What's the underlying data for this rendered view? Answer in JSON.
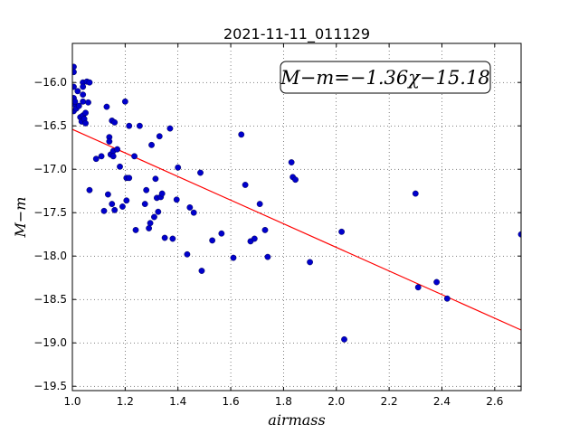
{
  "chart_data": {
    "type": "scatter",
    "title": "2021-11-11_011129",
    "xlabel": "airmass",
    "ylabel": "M−m",
    "xlim": [
      1.0,
      2.7
    ],
    "ylim": [
      -15.55,
      -19.55
    ],
    "y_inverted": true,
    "grid": true,
    "x_ticks": [
      1.0,
      1.2,
      1.4,
      1.6,
      1.8,
      2.0,
      2.2,
      2.4,
      2.6
    ],
    "x_tick_labels": [
      "1.0",
      "1.2",
      "1.4",
      "1.6",
      "1.8",
      "2.0",
      "2.2",
      "2.4",
      "2.6"
    ],
    "y_ticks": [
      -16.0,
      -16.5,
      -17.0,
      -17.5,
      -18.0,
      -18.5,
      -19.0,
      -19.5
    ],
    "y_tick_labels": [
      "−16.0",
      "−16.5",
      "−17.0",
      "−17.5",
      "−18.0",
      "−18.5",
      "−19.0",
      "−19.5"
    ],
    "annotation": "M−m=−1.36χ−15.18",
    "annotation_position": "top-right",
    "fit_line": {
      "slope": -1.36,
      "intercept": -15.18,
      "color": "#ff0000"
    },
    "point_color": "#0000cc",
    "points": [
      [
        1.005,
        -15.82
      ],
      [
        1.005,
        -15.88
      ],
      [
        1.005,
        -16.05
      ],
      [
        1.005,
        -16.18
      ],
      [
        1.005,
        -16.25
      ],
      [
        1.005,
        -16.33
      ],
      [
        1.01,
        -16.22
      ],
      [
        1.015,
        -16.3
      ],
      [
        1.02,
        -16.1
      ],
      [
        1.025,
        -16.27
      ],
      [
        1.03,
        -16.4
      ],
      [
        1.035,
        -16.45
      ],
      [
        1.04,
        -16.0
      ],
      [
        1.04,
        -16.05
      ],
      [
        1.04,
        -16.14
      ],
      [
        1.04,
        -16.22
      ],
      [
        1.04,
        -16.38
      ],
      [
        1.045,
        -16.42
      ],
      [
        1.05,
        -16.35
      ],
      [
        1.05,
        -16.47
      ],
      [
        1.055,
        -15.99
      ],
      [
        1.06,
        -16.23
      ],
      [
        1.065,
        -16.0
      ],
      [
        1.065,
        -17.24
      ],
      [
        1.09,
        -16.88
      ],
      [
        1.11,
        -16.85
      ],
      [
        1.12,
        -17.48
      ],
      [
        1.13,
        -16.28
      ],
      [
        1.135,
        -17.29
      ],
      [
        1.14,
        -16.63
      ],
      [
        1.14,
        -16.68
      ],
      [
        1.145,
        -16.83
      ],
      [
        1.15,
        -16.44
      ],
      [
        1.15,
        -17.4
      ],
      [
        1.155,
        -16.79
      ],
      [
        1.155,
        -16.85
      ],
      [
        1.16,
        -16.46
      ],
      [
        1.16,
        -17.47
      ],
      [
        1.17,
        -16.77
      ],
      [
        1.18,
        -16.97
      ],
      [
        1.19,
        -17.43
      ],
      [
        1.2,
        -16.22
      ],
      [
        1.205,
        -17.1
      ],
      [
        1.205,
        -17.36
      ],
      [
        1.215,
        -16.5
      ],
      [
        1.215,
        -17.1
      ],
      [
        1.235,
        -16.85
      ],
      [
        1.24,
        -17.7
      ],
      [
        1.255,
        -16.5
      ],
      [
        1.275,
        -17.4
      ],
      [
        1.28,
        -17.24
      ],
      [
        1.29,
        -17.68
      ],
      [
        1.295,
        -17.62
      ],
      [
        1.3,
        -16.72
      ],
      [
        1.31,
        -17.55
      ],
      [
        1.315,
        -17.11
      ],
      [
        1.32,
        -17.33
      ],
      [
        1.325,
        -17.49
      ],
      [
        1.33,
        -16.62
      ],
      [
        1.335,
        -17.32
      ],
      [
        1.34,
        -17.28
      ],
      [
        1.35,
        -17.79
      ],
      [
        1.37,
        -16.53
      ],
      [
        1.38,
        -17.8
      ],
      [
        1.395,
        -17.35
      ],
      [
        1.4,
        -16.98
      ],
      [
        1.435,
        -17.98
      ],
      [
        1.445,
        -17.44
      ],
      [
        1.46,
        -17.5
      ],
      [
        1.485,
        -17.04
      ],
      [
        1.49,
        -18.17
      ],
      [
        1.53,
        -17.82
      ],
      [
        1.565,
        -17.74
      ],
      [
        1.61,
        -18.02
      ],
      [
        1.64,
        -16.6
      ],
      [
        1.655,
        -17.18
      ],
      [
        1.675,
        -17.83
      ],
      [
        1.69,
        -17.8
      ],
      [
        1.71,
        -17.4
      ],
      [
        1.73,
        -17.7
      ],
      [
        1.74,
        -18.01
      ],
      [
        1.83,
        -16.92
      ],
      [
        1.835,
        -17.09
      ],
      [
        1.845,
        -17.12
      ],
      [
        1.9,
        -18.07
      ],
      [
        2.02,
        -17.72
      ],
      [
        2.03,
        -18.96
      ],
      [
        2.3,
        -17.28
      ],
      [
        2.31,
        -18.36
      ],
      [
        2.38,
        -18.3
      ],
      [
        2.42,
        -18.49
      ],
      [
        2.7,
        -17.75
      ]
    ]
  }
}
